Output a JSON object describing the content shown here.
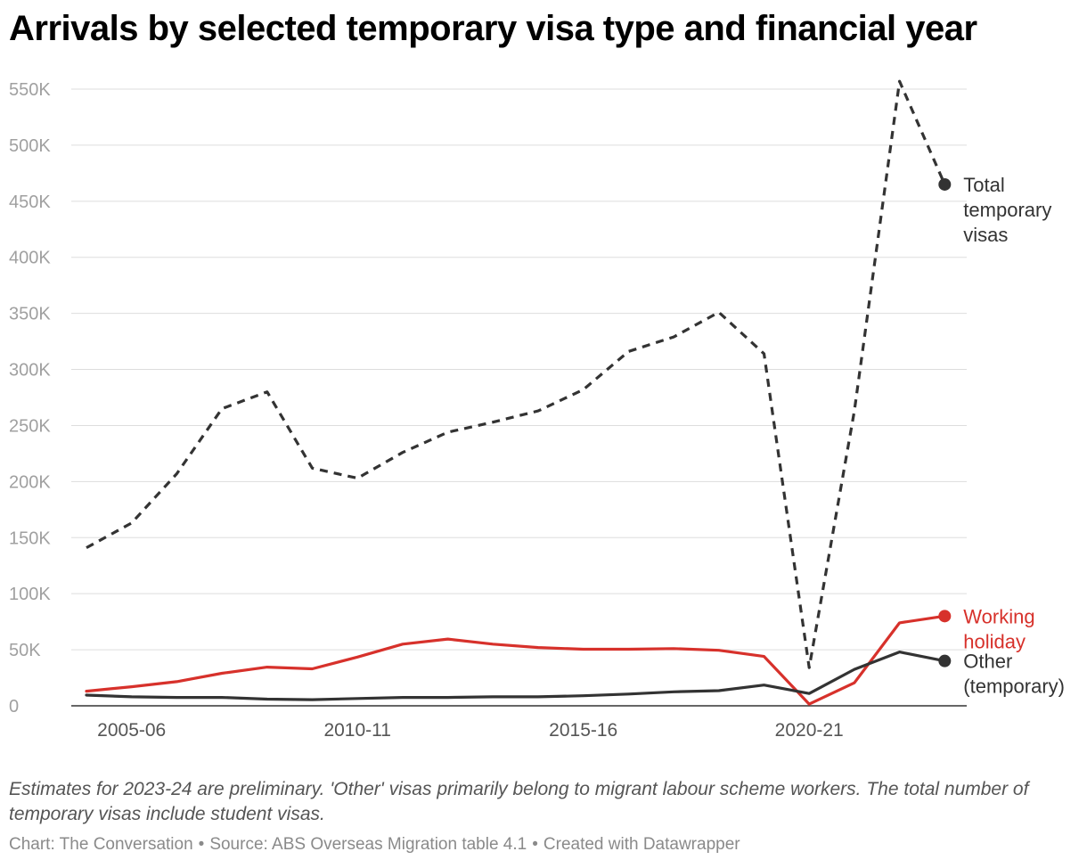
{
  "chart_data": {
    "type": "line",
    "title": "Arrivals by selected temporary visa type and financial year",
    "xlabel": "",
    "ylabel": "",
    "ylim": [
      0,
      550000
    ],
    "yticks": [
      0,
      50000,
      100000,
      150000,
      200000,
      250000,
      300000,
      350000,
      400000,
      450000,
      500000,
      550000
    ],
    "ytick_labels": [
      "0",
      "50K",
      "100K",
      "150K",
      "200K",
      "250K",
      "300K",
      "350K",
      "400K",
      "450K",
      "500K",
      "550K"
    ],
    "x": [
      "2004-05",
      "2005-06",
      "2006-07",
      "2007-08",
      "2008-09",
      "2009-10",
      "2010-11",
      "2011-12",
      "2012-13",
      "2013-14",
      "2014-15",
      "2015-16",
      "2016-17",
      "2017-18",
      "2018-19",
      "2019-20",
      "2020-21",
      "2021-22",
      "2022-23",
      "2023-24"
    ],
    "xticks": [
      "2005-06",
      "2010-11",
      "2015-16",
      "2020-21"
    ],
    "grid": true,
    "series": [
      {
        "name": "Total temporary visas",
        "label_lines": [
          "Total",
          "temporary",
          "visas"
        ],
        "color": "#333333",
        "style": "dashed",
        "values": [
          141000,
          163000,
          207000,
          265000,
          280000,
          212000,
          203000,
          226000,
          244000,
          253000,
          263000,
          282000,
          316000,
          329000,
          351000,
          314000,
          34000,
          263000,
          557000,
          465000
        ]
      },
      {
        "name": "Working holiday",
        "label_lines": [
          "Working",
          "holiday"
        ],
        "color": "#d7312b",
        "style": "solid",
        "values": [
          13000,
          17000,
          21500,
          29000,
          34500,
          33000,
          43500,
          55000,
          59500,
          55000,
          52000,
          50500,
          50500,
          51000,
          49500,
          44000,
          1500,
          20500,
          74000,
          80000
        ]
      },
      {
        "name": "Other (temporary)",
        "label_lines": [
          "Other",
          "(temporary)"
        ],
        "color": "#333333",
        "style": "solid",
        "values": [
          9500,
          8000,
          7500,
          7500,
          6000,
          5500,
          6500,
          7500,
          7500,
          8000,
          8000,
          9000,
          10500,
          12500,
          13500,
          18500,
          11000,
          32500,
          48000,
          40000
        ]
      }
    ]
  },
  "notes": "Estimates for 2023-24 are preliminary. 'Other' visas primarily belong to migrant labour scheme workers. The total number of temporary visas include student visas.",
  "footer": {
    "chart_credit": "Chart: The Conversation",
    "source": "Source: ABS Overseas Migration table 4.1",
    "created": "Created with Datawrapper"
  },
  "colors": {
    "gridline": "#dddddd",
    "axis": "#333333",
    "tick_text": "#a0a0a0",
    "x_tick_text": "#555555"
  }
}
